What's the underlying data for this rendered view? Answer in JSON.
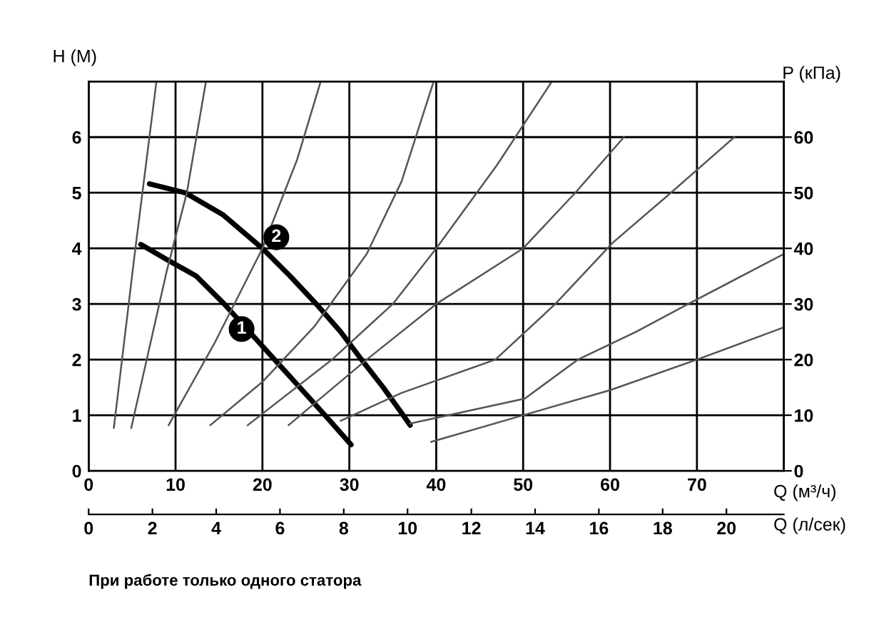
{
  "chart_data": {
    "type": "line",
    "xlabel": "Q (м³/ч)",
    "x2label": "Q (л/сек)",
    "ylabel": "H (М)",
    "y2label": "P (кПа)",
    "xlim": [
      0,
      80
    ],
    "xticks": [
      0,
      10,
      20,
      30,
      40,
      50,
      60,
      70
    ],
    "x2lim": [
      0,
      21.8
    ],
    "x2ticks": [
      0,
      2,
      4,
      6,
      8,
      10,
      12,
      14,
      16,
      18,
      20
    ],
    "ylim": [
      0,
      7
    ],
    "yticks": [
      0,
      1,
      2,
      3,
      4,
      5,
      6
    ],
    "y2lim": [
      0,
      70
    ],
    "y2ticks": [
      0,
      10,
      20,
      30,
      40,
      50,
      60
    ],
    "grid": true,
    "marker": "none",
    "line_style": "solid",
    "series": [
      {
        "color": "#000000",
        "x": [
          6.0,
          9.0,
          12.4,
          15.6,
          21.4,
          24.3,
          27.2,
          30.2
        ],
        "values": [
          4.07,
          3.8,
          3.5,
          3.0,
          2.0,
          1.5,
          1.0,
          0.47
        ]
      },
      {
        "color": "#000000",
        "x": [
          7.0,
          11.1,
          15.5,
          20.0,
          23.2,
          26.2,
          29.0,
          31.4,
          33.9,
          36.2,
          37.0
        ],
        "values": [
          5.16,
          5.0,
          4.6,
          4.0,
          3.5,
          3.0,
          2.5,
          2.0,
          1.5,
          1.0,
          0.82
        ]
      },
      {
        "color": "#555555",
        "x": [
          2.9,
          5.3,
          7.8
        ],
        "values": [
          0.77,
          3.9,
          7.0
        ]
      },
      {
        "color": "#555555",
        "x": [
          4.9,
          9.0,
          11.3,
          13.5
        ],
        "values": [
          0.77,
          3.6,
          5.0,
          7.0
        ]
      },
      {
        "color": "#555555",
        "x": [
          9.2,
          14.5,
          20.0,
          24.0,
          26.7
        ],
        "values": [
          0.82,
          2.3,
          4.0,
          5.6,
          7.0
        ]
      },
      {
        "color": "#555555",
        "x": [
          14.0,
          20.0,
          26.0,
          32.0,
          36.0,
          39.7
        ],
        "values": [
          0.82,
          1.6,
          2.6,
          3.9,
          5.2,
          7.0
        ]
      },
      {
        "color": "#555555",
        "x": [
          18.3,
          28.0,
          35.0,
          40.0,
          47.0,
          53.3
        ],
        "values": [
          0.82,
          2.0,
          3.0,
          4.0,
          5.5,
          7.0
        ]
      },
      {
        "color": "#555555",
        "x": [
          23.0,
          32.0,
          40.0,
          50.0,
          56.0,
          61.6
        ],
        "values": [
          0.82,
          2.0,
          3.0,
          4.0,
          5.0,
          6.0
        ]
      },
      {
        "color": "#555555",
        "x": [
          29.0,
          36.0,
          46.8,
          53.7,
          60.3,
          67.0,
          74.3
        ],
        "values": [
          0.9,
          1.4,
          2.0,
          3.0,
          4.1,
          5.0,
          6.0
        ]
      },
      {
        "color": "#555555",
        "x": [
          37.0,
          50.2,
          56.3,
          63.0,
          69.0,
          80.0
        ],
        "values": [
          0.85,
          1.3,
          2.0,
          2.5,
          3.0,
          3.9
        ]
      },
      {
        "color": "#555555",
        "x": [
          39.4,
          50.0,
          60.0,
          70.0,
          80.0
        ],
        "values": [
          0.52,
          1.0,
          1.45,
          2.0,
          2.58
        ]
      }
    ],
    "annotations": [
      {
        "text": "1",
        "x": 17.6,
        "y": 2.55
      },
      {
        "text": "2",
        "x": 21.6,
        "y": 4.2
      },
      "При работе только одного статора"
    ]
  }
}
